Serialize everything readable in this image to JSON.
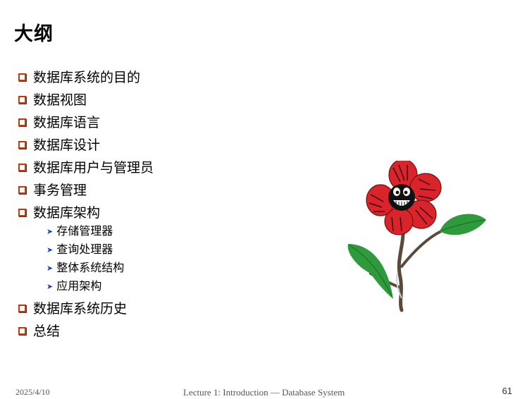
{
  "slide": {
    "title": "大纲",
    "outline": [
      {
        "label": "数据库系统的目的"
      },
      {
        "label": "数据视图"
      },
      {
        "label": "数据库语言"
      },
      {
        "label": "数据库设计"
      },
      {
        "label": "数据库用户与管理员"
      },
      {
        "label": "事务管理"
      },
      {
        "label": "数据库架构",
        "children": [
          "存储管理器",
          "查询处理器",
          "整体系统结构",
          "应用架构"
        ]
      },
      {
        "label": "数据库系统历史"
      },
      {
        "label": "总结"
      }
    ],
    "colors": {
      "bullet": "#c8350c",
      "sub_arrow": "#1f3fbf",
      "petal": "#d8242a",
      "leaf": "#2e9a3c"
    },
    "image": "cartoon-flower-illustration"
  },
  "footer": {
    "date": "2025/4/10",
    "center": "Lecture 1: Introduction — Database System",
    "page": "61"
  }
}
